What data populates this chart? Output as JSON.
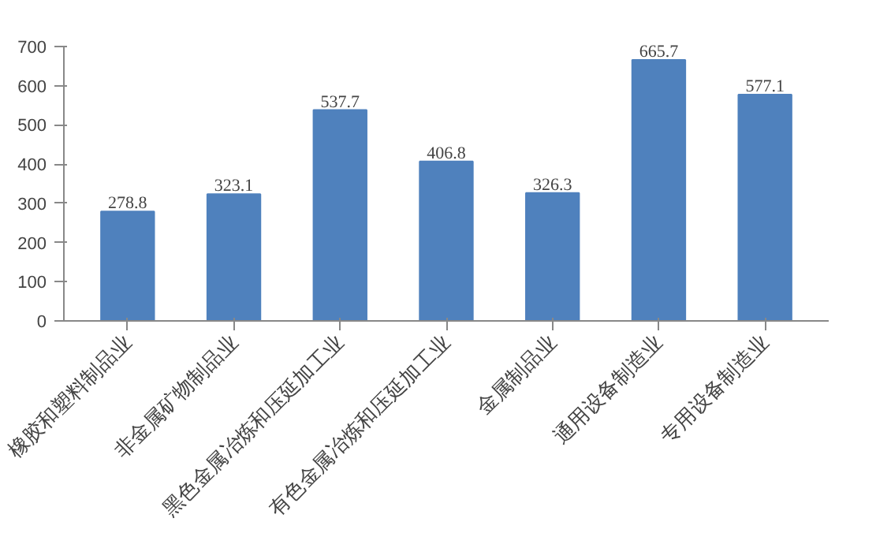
{
  "chart_data": {
    "type": "bar",
    "categories": [
      "橡胶和塑料制品业",
      "非金属矿物制品业",
      "黑色金属冶炼和压延加工业",
      "有色金属冶炼和压延加工业",
      "金属制品业",
      "通用设备制造业",
      "专用设备制造业"
    ],
    "values": [
      278.8,
      323.1,
      537.7,
      406.8,
      326.3,
      665.7,
      577.1
    ],
    "color": "#4f81bd",
    "ylim": [
      0,
      700
    ],
    "yticks": [
      0,
      100,
      200,
      300,
      400,
      500,
      600,
      700
    ],
    "data_labels": true,
    "grid": false
  }
}
